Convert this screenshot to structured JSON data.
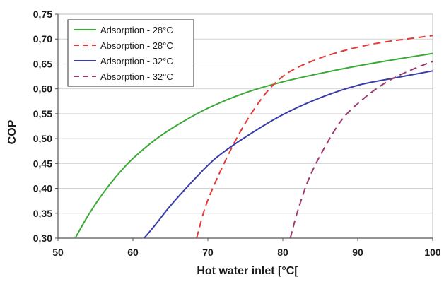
{
  "chart_data": {
    "type": "line",
    "xlabel": "Hot water inlet [°C[",
    "ylabel": "COP",
    "xlim": [
      50,
      100
    ],
    "ylim": [
      0.3,
      0.75
    ],
    "x_ticks": [
      50,
      60,
      70,
      80,
      90,
      100
    ],
    "x_tick_labels": [
      "50",
      "60",
      "70",
      "80",
      "90",
      "100"
    ],
    "y_ticks": [
      0.3,
      0.35,
      0.4,
      0.45,
      0.5,
      0.55,
      0.6,
      0.65,
      0.7,
      0.75
    ],
    "y_tick_labels": [
      "0,30",
      "0,35",
      "0,40",
      "0,45",
      "0,50",
      "0,55",
      "0,60",
      "0,65",
      "0,70",
      "0,75"
    ],
    "grid": "horizontal",
    "legend_position": "top-left",
    "series": [
      {
        "name": "Adsorption - 28°C",
        "color": "#3aa935",
        "dash": "solid",
        "x": [
          52.3,
          54,
          56,
          58,
          60,
          63,
          66,
          70,
          75,
          80,
          85,
          90,
          95,
          100
        ],
        "y": [
          0.3,
          0.345,
          0.39,
          0.428,
          0.46,
          0.498,
          0.528,
          0.561,
          0.592,
          0.614,
          0.631,
          0.646,
          0.659,
          0.671
        ]
      },
      {
        "name": "Absorption - 28°C",
        "color": "#e53a3a",
        "dash": "dashed",
        "x": [
          68.5,
          69.5,
          70.5,
          72,
          74,
          76,
          78,
          80,
          82,
          85,
          88,
          91,
          94,
          97,
          100
        ],
        "y": [
          0.3,
          0.355,
          0.395,
          0.445,
          0.505,
          0.555,
          0.596,
          0.625,
          0.643,
          0.662,
          0.676,
          0.687,
          0.695,
          0.701,
          0.707
        ]
      },
      {
        "name": "Adsorption - 32°C",
        "color": "#3a3da8",
        "dash": "solid",
        "x": [
          61.5,
          63,
          65,
          68,
          71,
          75,
          80,
          85,
          90,
          95,
          100
        ],
        "y": [
          0.3,
          0.327,
          0.365,
          0.415,
          0.46,
          0.503,
          0.548,
          0.582,
          0.607,
          0.622,
          0.636
        ]
      },
      {
        "name": "Absorption - 32°C",
        "color": "#9b3a6e",
        "dash": "dashed",
        "x": [
          81,
          82,
          83.5,
          85.5,
          88,
          91,
          94,
          97,
          100
        ],
        "y": [
          0.3,
          0.355,
          0.42,
          0.48,
          0.54,
          0.583,
          0.615,
          0.637,
          0.655
        ]
      }
    ]
  }
}
